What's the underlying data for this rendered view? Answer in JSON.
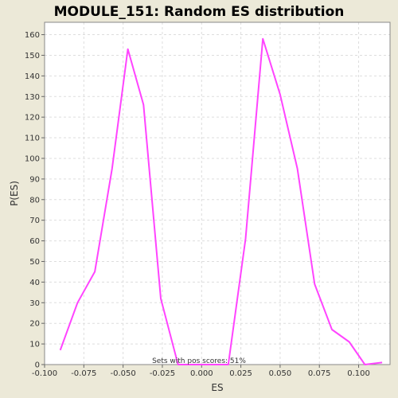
{
  "chart_data": {
    "type": "line",
    "title": "MODULE_151: Random ES distribution",
    "xlabel": "ES",
    "ylabel": "P(ES)",
    "annotation": "Sets with pos scores: 51%",
    "xlim": [
      -0.1,
      0.12
    ],
    "ylim": [
      0,
      166
    ],
    "xticks": [
      -0.1,
      -0.075,
      -0.05,
      -0.025,
      0.0,
      0.025,
      0.05,
      0.075,
      0.1
    ],
    "xtick_labels": [
      "-0.100",
      "-0.075",
      "-0.050",
      "-0.025",
      "0.000",
      "0.025",
      "0.050",
      "0.075",
      "0.100"
    ],
    "yticks": [
      0,
      10,
      20,
      30,
      40,
      50,
      60,
      70,
      80,
      90,
      100,
      110,
      120,
      130,
      140,
      150,
      160
    ],
    "ytick_labels": [
      "0",
      "10",
      "20",
      "30",
      "40",
      "50",
      "60",
      "70",
      "80",
      "90",
      "100",
      "110",
      "120",
      "130",
      "140",
      "150",
      "160"
    ],
    "grid": true,
    "colors": {
      "line": "#FF44FF",
      "plot_bg": "#FFFFFF",
      "frame_bg": "#ECE9D8",
      "grid": "#DDDDDD"
    },
    "series": [
      {
        "x": [
          -0.09,
          -0.079,
          -0.068,
          -0.057,
          -0.047,
          -0.037,
          -0.026,
          -0.015,
          0.017,
          0.028,
          0.039,
          0.05,
          0.061,
          0.072,
          0.083,
          0.094,
          0.104,
          0.115
        ],
        "y": [
          7,
          30,
          45,
          95,
          153,
          126,
          32,
          0,
          0,
          61,
          158,
          131,
          95,
          39,
          17,
          11,
          0,
          1
        ]
      }
    ]
  }
}
